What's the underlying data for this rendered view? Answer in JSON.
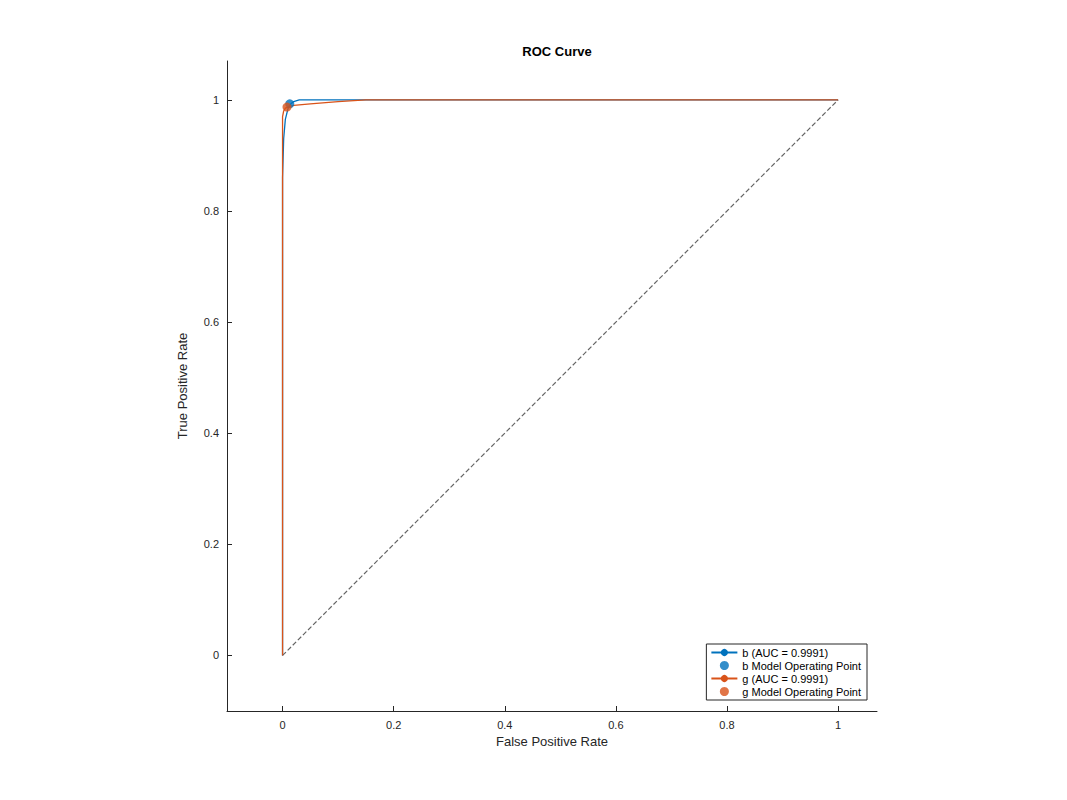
{
  "chart_data": {
    "type": "line",
    "title": "ROC Curve",
    "x_label": "False Positive Rate",
    "y_label": "True Positive Rate",
    "xlim": [
      -0.1,
      1.07
    ],
    "ylim": [
      -0.1,
      1.07
    ],
    "xticks": [
      0,
      0.2,
      0.4,
      0.6,
      0.8,
      1
    ],
    "yticks": [
      0,
      0.2,
      0.4,
      0.6,
      0.8,
      1
    ],
    "grid": false,
    "legend": "lower right",
    "series": [
      {
        "type": "line",
        "line_style": "dashed",
        "color": "#666666",
        "x": [
          0,
          1
        ],
        "values": [
          0,
          1
        ]
      },
      {
        "name": "b (AUC = 0.9991)",
        "type": "line",
        "line_style": "solid",
        "color": "#0072BD",
        "x": [
          0,
          0,
          0.002,
          0.005,
          0.01,
          0.015,
          0.02,
          0.03,
          0.05,
          0.1,
          1
        ],
        "values": [
          0,
          0.86,
          0.93,
          0.965,
          0.985,
          0.993,
          0.997,
          1.0,
          1.0,
          1.0,
          1.0
        ]
      },
      {
        "name": "b Model Operating Point",
        "type": "scatter",
        "marker": "circle",
        "color": "#0072BD",
        "x": [
          0.013
        ],
        "values": [
          0.993
        ]
      },
      {
        "name": "g (AUC = 0.9991)",
        "type": "line",
        "line_style": "solid",
        "color": "#D95319",
        "x": [
          0,
          0,
          0.002,
          0.005,
          0.01,
          0.02,
          0.05,
          0.1,
          0.15,
          1
        ],
        "values": [
          0,
          0.97,
          0.98,
          0.985,
          0.987,
          0.99,
          0.993,
          0.997,
          1.0,
          1.0
        ]
      },
      {
        "name": "g Model Operating Point",
        "type": "scatter",
        "marker": "circle",
        "color": "#D95319",
        "x": [
          0.008
        ],
        "values": [
          0.987
        ]
      }
    ]
  }
}
